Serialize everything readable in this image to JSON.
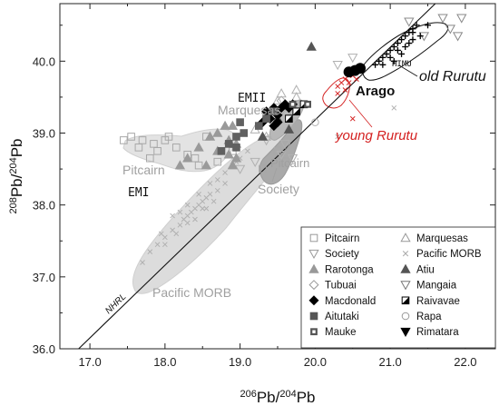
{
  "chart_data": {
    "type": "scatter",
    "title": "",
    "xlabel": {
      "sup": "206",
      "base": "Pb/",
      "sup2": "204",
      "base2": "Pb"
    },
    "ylabel": {
      "sup": "208",
      "base": "Pb/",
      "sup2": "204",
      "base2": "Pb"
    },
    "xlim": [
      16.6,
      22.4
    ],
    "ylim": [
      36.0,
      40.8
    ],
    "xticks": [
      "17.0",
      "18.0",
      "19.0",
      "20.0",
      "21.0",
      "22.0"
    ],
    "yticks": [
      "36.0",
      "37.0",
      "38.0",
      "39.0",
      "40.0"
    ],
    "grid": false,
    "legend_position": "bottom-right",
    "reference_line": {
      "label": "NHRL",
      "from": [
        16.85,
        36.0
      ],
      "to": [
        21.6,
        40.8
      ]
    },
    "legend": [
      {
        "name": "Pitcairn",
        "marker": "square-open",
        "color": "#999999"
      },
      {
        "name": "Marquesas",
        "marker": "triangle-open",
        "color": "#999999"
      },
      {
        "name": "Society",
        "marker": "triangle-down-open",
        "color": "#999999"
      },
      {
        "name": "Pacific MORB",
        "marker": "x",
        "color": "#aaaaaa"
      },
      {
        "name": "Rarotonga",
        "marker": "triangle",
        "color": "#999999"
      },
      {
        "name": "Atiu",
        "marker": "triangle",
        "color": "#555555"
      },
      {
        "name": "Tubuai",
        "marker": "diamond-open",
        "color": "#999999"
      },
      {
        "name": "Mangaia",
        "marker": "triangle-down-open",
        "color": "#777777"
      },
      {
        "name": "Macdonald",
        "marker": "diamond",
        "color": "#000000"
      },
      {
        "name": "Raivavae",
        "marker": "half-square",
        "color": "#000000"
      },
      {
        "name": "Aitutaki",
        "marker": "square",
        "color": "#555555"
      },
      {
        "name": "Rapa",
        "marker": "circle-open",
        "color": "#999999"
      },
      {
        "name": "Mauke",
        "marker": "square-thick",
        "color": "#555555"
      },
      {
        "name": "Rimatara",
        "marker": "triangle-down",
        "color": "#000000"
      }
    ],
    "annotations": [
      {
        "text": "EMII",
        "color": "#111111"
      },
      {
        "text": "Marquesas",
        "color": "#a0a0a0"
      },
      {
        "text": "Pitcairn",
        "color": "#a0a0a0"
      },
      {
        "text": "Pitcairn",
        "color": "#a0a0a0"
      },
      {
        "text": "EMI",
        "color": "#111111"
      },
      {
        "text": "Society",
        "color": "#a0a0a0"
      },
      {
        "text": "Pacific MORB",
        "color": "#a0a0a0"
      },
      {
        "text": "HIMU",
        "color": "#111111"
      },
      {
        "text": "old Rurutu",
        "color": "#111111"
      },
      {
        "text": "Arago",
        "color": "#111111"
      },
      {
        "text": "young Rurutu",
        "color": "#d42020"
      }
    ],
    "series": [
      {
        "name": "Pacific MORB",
        "marker": "x",
        "color": "#b0b0b0",
        "points": [
          [
            17.7,
            37.2
          ],
          [
            17.8,
            37.35
          ],
          [
            17.9,
            37.45
          ],
          [
            18.0,
            37.55
          ],
          [
            18.1,
            37.65
          ],
          [
            18.2,
            37.72
          ],
          [
            18.25,
            37.8
          ],
          [
            18.3,
            37.85
          ],
          [
            18.35,
            37.9
          ],
          [
            18.4,
            37.95
          ],
          [
            18.45,
            38.0
          ],
          [
            18.5,
            38.05
          ],
          [
            18.55,
            38.1
          ],
          [
            18.6,
            38.15
          ],
          [
            18.3,
            37.75
          ],
          [
            18.2,
            37.9
          ],
          [
            18.5,
            37.95
          ],
          [
            18.6,
            38.3
          ],
          [
            18.7,
            38.35
          ],
          [
            18.8,
            38.45
          ],
          [
            18.9,
            38.55
          ],
          [
            18.95,
            38.6
          ],
          [
            19.0,
            38.65
          ],
          [
            18.1,
            37.85
          ],
          [
            18.4,
            37.8
          ],
          [
            18.7,
            38.2
          ],
          [
            18.8,
            38.3
          ],
          [
            19.1,
            38.75
          ],
          [
            18.0,
            37.45
          ],
          [
            17.95,
            37.6
          ],
          [
            18.3,
            38.0
          ],
          [
            18.45,
            38.15
          ],
          [
            20.3,
            38.95
          ],
          [
            21.05,
            39.35
          ],
          [
            18.85,
            38.7
          ],
          [
            18.55,
            37.95
          ],
          [
            18.15,
            37.6
          ],
          [
            18.65,
            38.05
          ]
        ]
      },
      {
        "name": "Pitcairn",
        "marker": "square-open",
        "color": "#a8a8a8",
        "points": [
          [
            17.55,
            38.95
          ],
          [
            17.7,
            38.9
          ],
          [
            17.85,
            38.85
          ],
          [
            17.9,
            38.75
          ],
          [
            18.0,
            38.9
          ],
          [
            18.15,
            38.8
          ],
          [
            18.3,
            38.7
          ],
          [
            18.4,
            38.65
          ],
          [
            18.45,
            38.55
          ],
          [
            18.55,
            38.95
          ],
          [
            18.7,
            38.6
          ],
          [
            18.75,
            38.75
          ],
          [
            18.9,
            38.75
          ],
          [
            17.8,
            38.65
          ],
          [
            18.05,
            38.95
          ],
          [
            19.3,
            38.5
          ],
          [
            19.5,
            38.75
          ],
          [
            19.6,
            38.6
          ],
          [
            17.65,
            38.8
          ],
          [
            17.45,
            38.9
          ]
        ]
      },
      {
        "name": "Marquesas",
        "marker": "triangle-open",
        "color": "#b0b0b0",
        "points": [
          [
            19.5,
            39.45
          ],
          [
            19.55,
            39.55
          ],
          [
            19.75,
            39.5
          ],
          [
            19.4,
            39.3
          ],
          [
            19.7,
            39.3
          ],
          [
            19.2,
            39.05
          ],
          [
            19.75,
            39.6
          ],
          [
            19.35,
            38.95
          ]
        ]
      },
      {
        "name": "Society",
        "marker": "triangle-down-open",
        "color": "#b0b0b0",
        "points": [
          [
            19.2,
            38.6
          ],
          [
            19.35,
            38.9
          ],
          [
            19.6,
            38.85
          ],
          [
            19.7,
            38.65
          ],
          [
            19.0,
            38.5
          ],
          [
            19.55,
            38.7
          ],
          [
            20.5,
            40.05
          ],
          [
            20.3,
            39.95
          ]
        ]
      },
      {
        "name": "Rarotonga",
        "marker": "triangle",
        "color": "#9a9a9a",
        "points": [
          [
            18.6,
            38.95
          ],
          [
            18.7,
            39.0
          ],
          [
            18.8,
            39.1
          ],
          [
            18.85,
            38.9
          ],
          [
            18.95,
            38.85
          ],
          [
            18.7,
            38.75
          ],
          [
            18.3,
            38.65
          ],
          [
            18.45,
            38.8
          ],
          [
            18.9,
            39.1
          ],
          [
            18.9,
            38.55
          ],
          [
            18.95,
            38.65
          ],
          [
            18.55,
            38.55
          ],
          [
            18.2,
            38.55
          ],
          [
            18.85,
            38.7
          ]
        ]
      },
      {
        "name": "Atiu",
        "marker": "triangle",
        "color": "#555555",
        "points": [
          [
            19.95,
            40.2
          ],
          [
            19.65,
            39.05
          ],
          [
            19.5,
            39.2
          ],
          [
            19.3,
            38.95
          ]
        ]
      },
      {
        "name": "Tubuai",
        "marker": "diamond-open",
        "color": "#aaaaaa",
        "points": [
          [
            19.55,
            39.45
          ],
          [
            19.6,
            39.4
          ],
          [
            19.7,
            39.3
          ]
        ]
      },
      {
        "name": "Mangaia",
        "marker": "triangle-down-open",
        "color": "#888888",
        "points": [
          [
            21.7,
            40.6
          ],
          [
            21.95,
            40.6
          ],
          [
            21.8,
            40.45
          ],
          [
            21.25,
            40.55
          ],
          [
            21.45,
            40.35
          ],
          [
            21.9,
            40.35
          ]
        ]
      },
      {
        "name": "Macdonald",
        "marker": "diamond",
        "color": "#000000",
        "points": [
          [
            19.35,
            39.3
          ],
          [
            19.4,
            39.2
          ],
          [
            19.45,
            39.35
          ],
          [
            19.5,
            39.25
          ],
          [
            19.55,
            39.35
          ],
          [
            19.6,
            39.4
          ],
          [
            19.65,
            39.35
          ],
          [
            19.7,
            39.4
          ],
          [
            19.3,
            39.15
          ],
          [
            19.45,
            39.1
          ],
          [
            19.5,
            39.15
          ]
        ]
      },
      {
        "name": "Raivavae",
        "marker": "half-square",
        "color": "#000000",
        "points": [
          [
            19.65,
            39.2
          ],
          [
            19.75,
            39.3
          ],
          [
            19.85,
            39.4
          ]
        ]
      },
      {
        "name": "Aitutaki",
        "marker": "square",
        "color": "#606060",
        "points": [
          [
            18.75,
            38.75
          ],
          [
            18.95,
            38.95
          ],
          [
            19.0,
            39.15
          ],
          [
            18.85,
            38.85
          ],
          [
            19.05,
            39.0
          ],
          [
            19.25,
            39.1
          ],
          [
            19.35,
            39.2
          ],
          [
            19.45,
            39.3
          ],
          [
            18.95,
            38.8
          ]
        ]
      },
      {
        "name": "Rapa",
        "marker": "circle-open",
        "color": "#b0b0b0",
        "points": [
          [
            20.0,
            39.15
          ]
        ]
      },
      {
        "name": "Mauke",
        "marker": "square-thick",
        "color": "#555555",
        "points": [
          [
            19.7,
            39.4
          ],
          [
            19.9,
            39.4
          ]
        ]
      },
      {
        "name": "Rimatara",
        "marker": "triangle-down",
        "color": "#000000",
        "points": []
      },
      {
        "name": "old Rurutu",
        "marker": "plus",
        "color": "#000000",
        "points": [
          [
            20.8,
            39.95
          ],
          [
            20.85,
            40.0
          ],
          [
            20.9,
            40.05
          ],
          [
            20.95,
            40.1
          ],
          [
            21.0,
            40.15
          ],
          [
            21.05,
            40.2
          ],
          [
            21.1,
            40.25
          ],
          [
            21.15,
            40.3
          ],
          [
            21.2,
            40.35
          ],
          [
            21.25,
            40.4
          ],
          [
            21.3,
            40.45
          ],
          [
            21.35,
            40.5
          ],
          [
            21.0,
            40.05
          ],
          [
            21.1,
            40.15
          ],
          [
            21.2,
            40.2
          ],
          [
            21.3,
            40.3
          ],
          [
            21.4,
            40.35
          ],
          [
            21.05,
            40.0
          ],
          [
            21.15,
            40.1
          ],
          [
            21.3,
            40.4
          ],
          [
            21.5,
            40.5
          ],
          [
            20.9,
            39.95
          ],
          [
            21.25,
            40.25
          ]
        ]
      },
      {
        "name": "young Rurutu",
        "marker": "x",
        "color": "#d42020",
        "points": [
          [
            20.3,
            39.65
          ],
          [
            20.35,
            39.7
          ],
          [
            20.4,
            39.75
          ],
          [
            20.45,
            39.7
          ],
          [
            20.5,
            39.8
          ],
          [
            20.4,
            39.6
          ],
          [
            20.55,
            39.75
          ],
          [
            20.3,
            39.55
          ],
          [
            20.45,
            39.85
          ],
          [
            20.5,
            39.2
          ]
        ]
      },
      {
        "name": "Arago",
        "marker": "circle",
        "color": "#000000",
        "points": [
          [
            20.45,
            39.85
          ],
          [
            20.6,
            39.9
          ],
          [
            20.53,
            39.87
          ]
        ]
      }
    ]
  }
}
